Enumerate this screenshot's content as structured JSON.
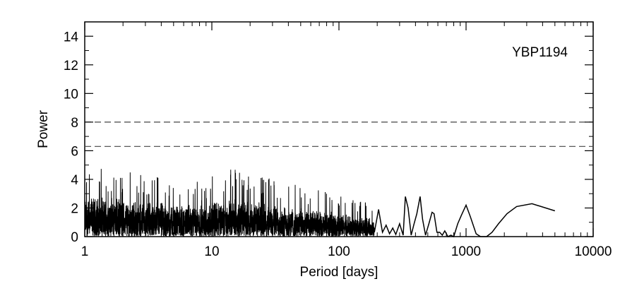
{
  "chart_data": {
    "type": "line",
    "title": "",
    "annotation": "YBP1194",
    "xlabel": "Period [days]",
    "ylabel": "Power",
    "xscale": "log",
    "xlim": [
      1,
      10000
    ],
    "ylim": [
      0,
      15
    ],
    "x_ticks": [
      1,
      10,
      100,
      1000,
      10000
    ],
    "x_tick_labels": [
      "1",
      "10",
      "100",
      "1000",
      "10000"
    ],
    "y_ticks": [
      0,
      2,
      4,
      6,
      8,
      10,
      12,
      14
    ],
    "y_tick_labels": [
      "0",
      "2",
      "4",
      "6",
      "8",
      "10",
      "12",
      "14"
    ],
    "grid": false,
    "significance_levels": [
      6.3,
      8.0
    ],
    "series": [
      {
        "x": [
          190,
          205,
          220,
          235,
          250,
          265,
          280,
          300,
          320,
          333,
          350,
          370,
          390,
          410,
          435,
          455,
          480,
          510,
          540,
          560,
          590,
          620,
          650,
          680,
          720,
          760,
          800,
          860,
          920,
          1000,
          1080,
          1200,
          1300,
          1450,
          1600,
          1800,
          2100,
          2500,
          3300,
          5000
        ],
        "y": [
          0.3,
          1.9,
          0.3,
          0.8,
          0.2,
          0.6,
          0.15,
          0.9,
          0.1,
          2.8,
          2.0,
          0.1,
          0.9,
          1.6,
          2.8,
          1.2,
          0.1,
          0.9,
          1.7,
          1.6,
          0.3,
          0.3,
          0.1,
          0.4,
          0.0,
          0.1,
          0.0,
          0.9,
          1.5,
          2.2,
          1.4,
          0.2,
          0.0,
          0.0,
          0.3,
          0.9,
          1.6,
          2.1,
          2.3,
          1.8
        ]
      }
    ]
  }
}
